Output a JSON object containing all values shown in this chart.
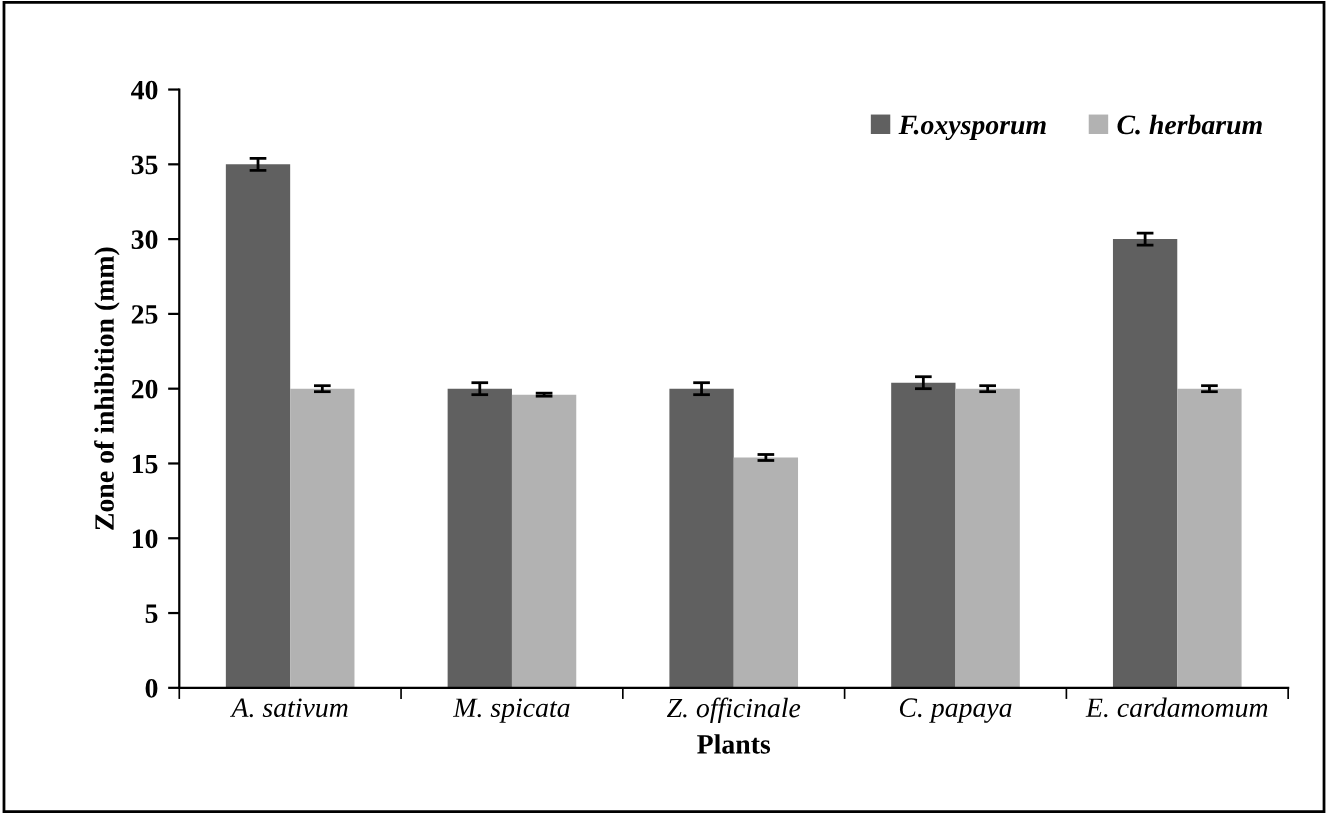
{
  "chart_data": {
    "type": "bar",
    "xlabel": "Plants",
    "ylabel": "Zone of inhibition (mm)",
    "categories": [
      "A. sativum",
      "M. spicata",
      "Z. officinale",
      "C. papaya",
      "E. cardamomum"
    ],
    "series": [
      {
        "name": "F.oxysporum",
        "color": "#606060",
        "values": [
          35,
          20,
          20,
          20.4,
          30
        ],
        "errors": [
          0.4,
          0.4,
          0.4,
          0.4,
          0.4
        ]
      },
      {
        "name": "C. herbarum",
        "color": "#b2b2b2",
        "values": [
          20,
          19.6,
          15.4,
          20,
          20
        ],
        "errors": [
          0.2,
          0.1,
          0.2,
          0.2,
          0.2
        ]
      }
    ],
    "ylim": [
      0,
      40
    ],
    "yticks": [
      0,
      5,
      10,
      15,
      20,
      25,
      30,
      35,
      40
    ],
    "grid": false,
    "legend": "top right"
  }
}
